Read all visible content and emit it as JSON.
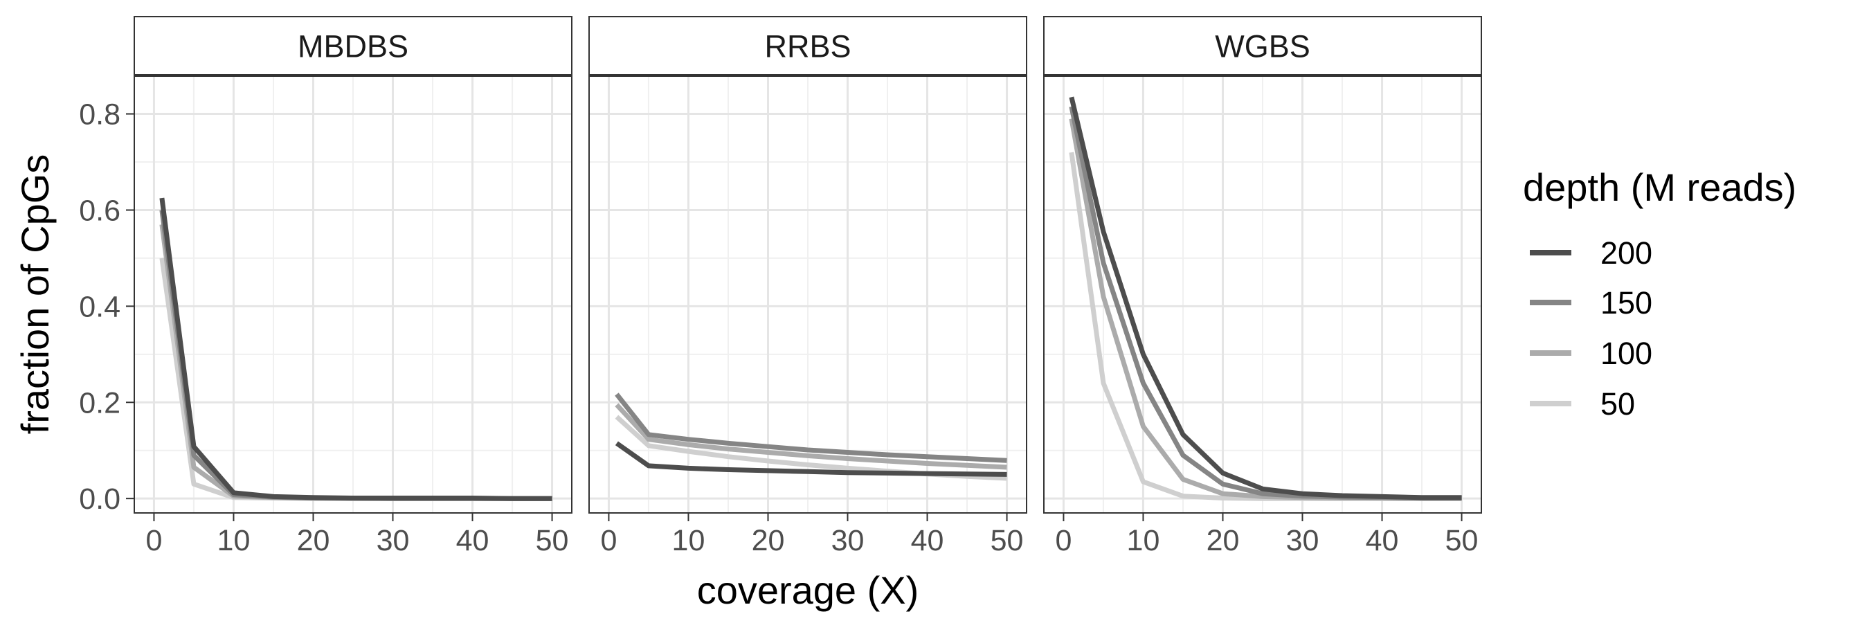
{
  "chart_data": {
    "type": "line",
    "xlabel": "coverage (X)",
    "ylabel": "fraction of CpGs",
    "xlim": [
      0,
      50
    ],
    "ylim": [
      -0.03,
      0.88
    ],
    "x_ticks": [
      0,
      10,
      20,
      30,
      40,
      50
    ],
    "x_tick_labels": [
      "0",
      "10",
      "20",
      "30",
      "40",
      "50"
    ],
    "y_ticks": [
      0.0,
      0.2,
      0.4,
      0.6,
      0.8
    ],
    "y_tick_labels": [
      "0.0",
      "0.2",
      "0.4",
      "0.6",
      "0.8"
    ],
    "grid": true,
    "legend": {
      "title": "depth (M reads)",
      "position": "right",
      "entries": [
        "200",
        "150",
        "100",
        "50"
      ]
    },
    "series_colors": {
      "200": "#4d4d4d",
      "150": "#858585",
      "100": "#ababab",
      "50": "#cfcfcf"
    },
    "panels": [
      {
        "title": "MBDBS",
        "series": [
          {
            "name": "200",
            "x": [
              1,
              5,
              10,
              15,
              20,
              25,
              30,
              35,
              40,
              45,
              50
            ],
            "y": [
              0.625,
              0.108,
              0.012,
              0.004,
              0.002,
              0.001,
              0.001,
              0.001,
              0.001,
              0.0,
              0.0
            ]
          },
          {
            "name": "150",
            "x": [
              1,
              5,
              10,
              15,
              20,
              25,
              30,
              35,
              40,
              45,
              50
            ],
            "y": [
              0.6,
              0.09,
              0.008,
              0.003,
              0.001,
              0.001,
              0.0,
              0.0,
              0.0,
              0.0,
              0.0
            ]
          },
          {
            "name": "100",
            "x": [
              1,
              5,
              10,
              15,
              20,
              25,
              30,
              35,
              40,
              45,
              50
            ],
            "y": [
              0.57,
              0.065,
              0.005,
              0.002,
              0.001,
              0.0,
              0.0,
              0.0,
              0.0,
              0.0,
              0.0
            ]
          },
          {
            "name": "50",
            "x": [
              1,
              5,
              10,
              15,
              20,
              25,
              30,
              35,
              40,
              45,
              50
            ],
            "y": [
              0.5,
              0.03,
              0.002,
              0.001,
              0.0,
              0.0,
              0.0,
              0.0,
              0.0,
              0.0,
              0.0
            ]
          }
        ]
      },
      {
        "title": "RRBS",
        "series": [
          {
            "name": "200",
            "x": [
              1,
              5,
              10,
              15,
              20,
              25,
              30,
              35,
              40,
              45,
              50
            ],
            "y": [
              0.115,
              0.068,
              0.063,
              0.06,
              0.058,
              0.056,
              0.054,
              0.053,
              0.052,
              0.051,
              0.05
            ]
          },
          {
            "name": "150",
            "x": [
              1,
              5,
              10,
              15,
              20,
              25,
              30,
              35,
              40,
              45,
              50
            ],
            "y": [
              0.217,
              0.133,
              0.123,
              0.115,
              0.108,
              0.101,
              0.096,
              0.091,
              0.087,
              0.083,
              0.079
            ]
          },
          {
            "name": "100",
            "x": [
              1,
              5,
              10,
              15,
              20,
              25,
              30,
              35,
              40,
              45,
              50
            ],
            "y": [
              0.195,
              0.123,
              0.112,
              0.103,
              0.096,
              0.089,
              0.083,
              0.078,
              0.073,
              0.069,
              0.065
            ]
          },
          {
            "name": "50",
            "x": [
              1,
              5,
              10,
              15,
              20,
              25,
              30,
              35,
              40,
              45,
              50
            ],
            "y": [
              0.17,
              0.11,
              0.098,
              0.087,
              0.078,
              0.07,
              0.063,
              0.057,
              0.051,
              0.046,
              0.042
            ]
          }
        ]
      },
      {
        "title": "WGBS",
        "series": [
          {
            "name": "200",
            "x": [
              1,
              5,
              10,
              15,
              20,
              25,
              30,
              35,
              40,
              45,
              50
            ],
            "y": [
              0.835,
              0.555,
              0.3,
              0.133,
              0.053,
              0.02,
              0.01,
              0.006,
              0.004,
              0.002,
              0.002
            ]
          },
          {
            "name": "150",
            "x": [
              1,
              5,
              10,
              15,
              20,
              25,
              30,
              35,
              40,
              45,
              50
            ],
            "y": [
              0.815,
              0.49,
              0.24,
              0.09,
              0.03,
              0.01,
              0.005,
              0.003,
              0.002,
              0.001,
              0.001
            ]
          },
          {
            "name": "100",
            "x": [
              1,
              5,
              10,
              15,
              20,
              25,
              30,
              35,
              40,
              45,
              50
            ],
            "y": [
              0.79,
              0.42,
              0.15,
              0.04,
              0.01,
              0.004,
              0.002,
              0.001,
              0.001,
              0.0,
              0.0
            ]
          },
          {
            "name": "50",
            "x": [
              1,
              5,
              10,
              15,
              20,
              25,
              30,
              35,
              40,
              45,
              50
            ],
            "y": [
              0.72,
              0.24,
              0.035,
              0.005,
              0.001,
              0.0,
              0.0,
              0.0,
              0.0,
              0.0,
              0.0
            ]
          }
        ]
      }
    ]
  }
}
